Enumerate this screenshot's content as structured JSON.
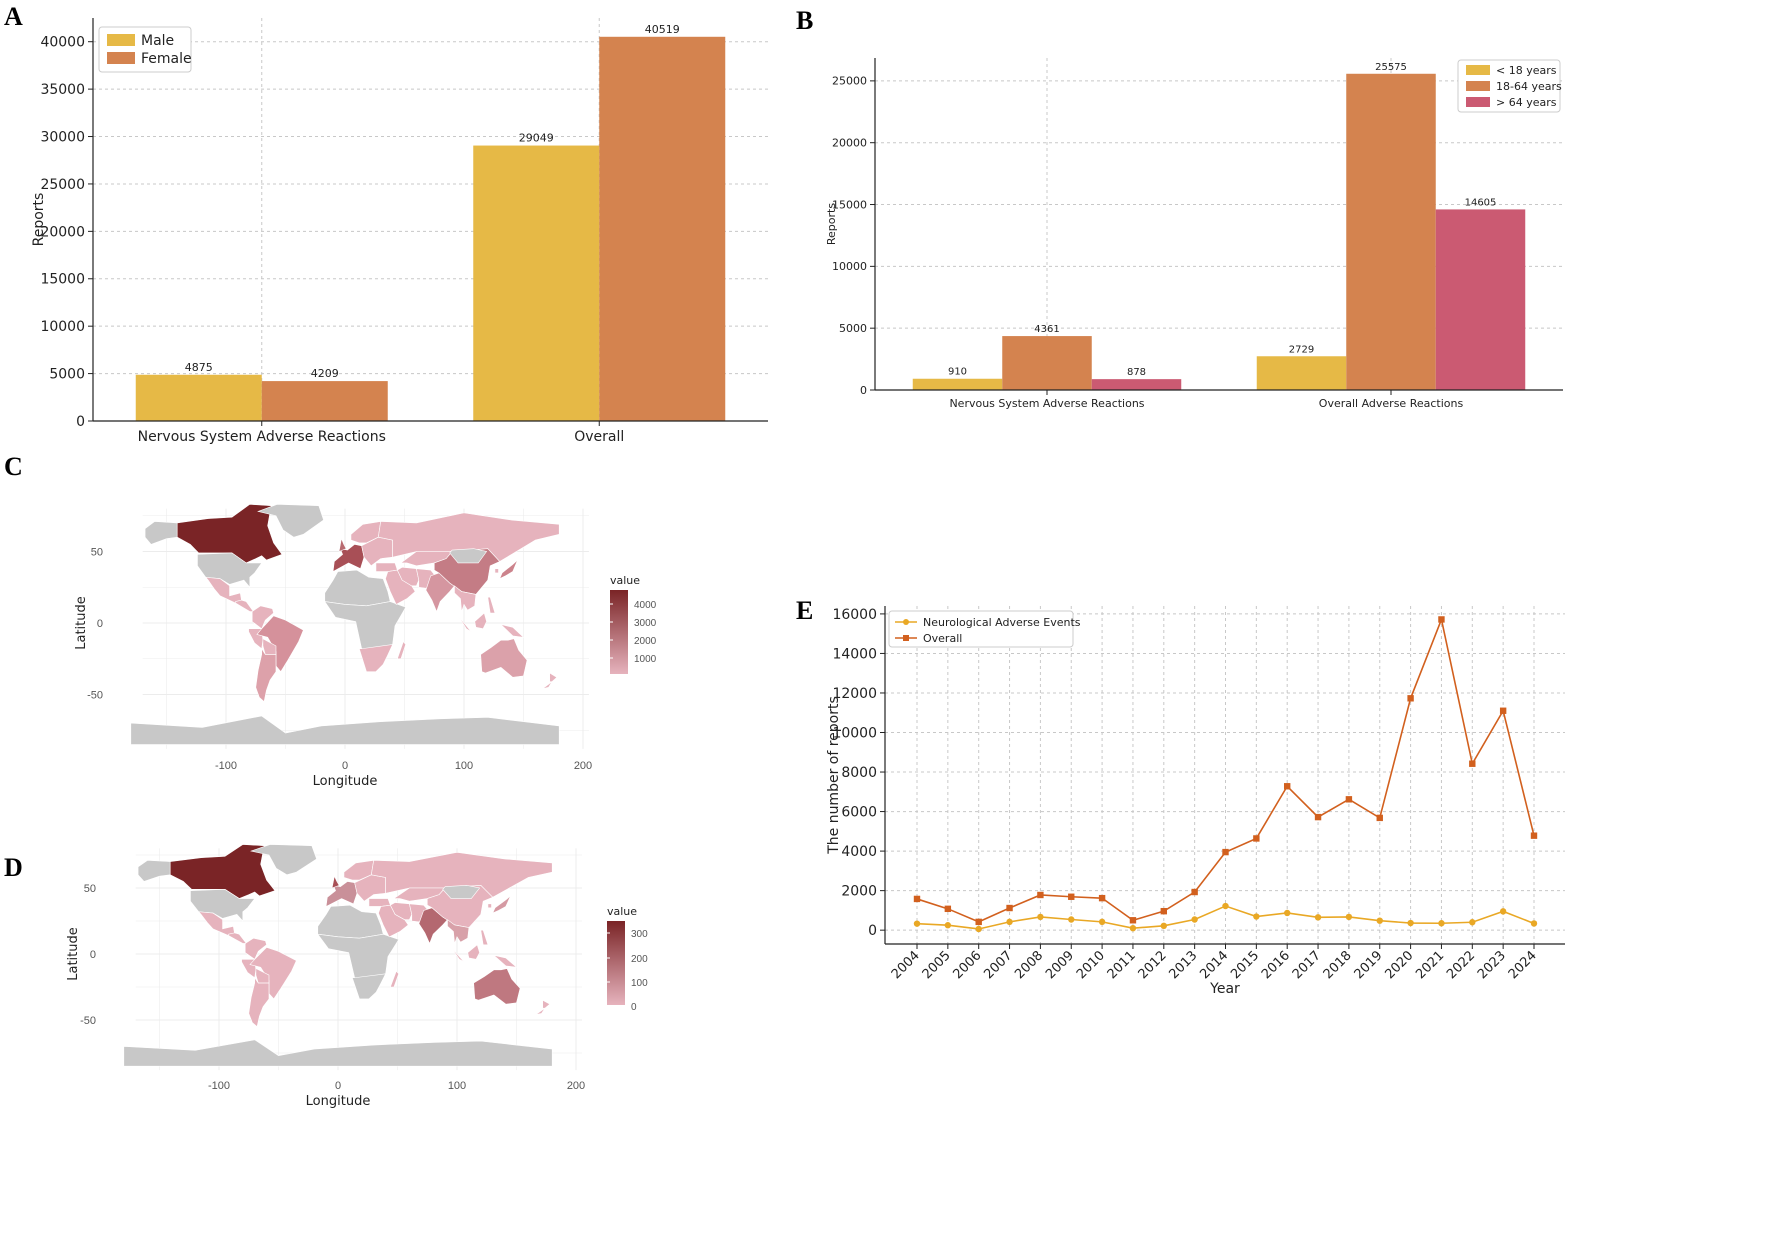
{
  "panels": {
    "a": "A",
    "b": "B",
    "c": "C",
    "d": "D",
    "e": "E"
  },
  "colors": {
    "yellow": "#E6B946",
    "orange": "#D4834F",
    "red": "#CB5A72",
    "e_yellow": "#E9A825",
    "e_orange": "#D2601E",
    "grid": "#c8c8c8",
    "land_gray": "#c8c8c8",
    "map_dark": "#7A2426",
    "map_light": "#E6B3BD"
  },
  "chart_data": [
    {
      "id": "A",
      "type": "bar",
      "categories": [
        "Nervous System Adverse Reactions",
        "Overall"
      ],
      "series": [
        {
          "name": "Male",
          "values": [
            4875,
            29049
          ]
        },
        {
          "name": "Female",
          "values": [
            4209,
            40519
          ]
        }
      ],
      "ylabel": "Reports",
      "xlabel": "",
      "ylim": [
        0,
        42500
      ],
      "yticks": [
        0,
        5000,
        10000,
        15000,
        20000,
        25000,
        30000,
        35000,
        40000
      ],
      "legend": "top-left",
      "grid": true
    },
    {
      "id": "B",
      "type": "bar",
      "categories": [
        "Nervous System Adverse Reactions",
        "Overall Adverse Reactions"
      ],
      "series": [
        {
          "name": "< 18 years",
          "values": [
            910,
            2729
          ]
        },
        {
          "name": "18-64 years",
          "values": [
            4361,
            25575
          ]
        },
        {
          "name": "> 64 years",
          "values": [
            878,
            14605
          ]
        }
      ],
      "ylabel": "Reports",
      "xlabel": "",
      "ylim": [
        0,
        26850
      ],
      "yticks": [
        0,
        5000,
        10000,
        15000,
        20000,
        25000
      ],
      "legend": "top-right",
      "grid": true
    },
    {
      "id": "E",
      "type": "line",
      "x": [
        "2004",
        "2005",
        "2006",
        "2007",
        "2008",
        "2009",
        "2010",
        "2011",
        "2012",
        "2013",
        "2014",
        "2015",
        "2016",
        "2017",
        "2018",
        "2019",
        "2020",
        "2021",
        "2022",
        "2023",
        "2024"
      ],
      "series": [
        {
          "name": "Neurological Adverse Events",
          "values": [
            330,
            250,
            60,
            420,
            670,
            540,
            420,
            100,
            220,
            540,
            1220,
            690,
            870,
            650,
            670,
            480,
            360,
            350,
            400,
            950,
            340
          ]
        },
        {
          "name": "Overall",
          "values": [
            1580,
            1080,
            420,
            1120,
            1780,
            1690,
            1620,
            500,
            960,
            1930,
            3950,
            4640,
            7280,
            5720,
            6620,
            5680,
            11730,
            15720,
            8420,
            11100,
            4780
          ]
        }
      ],
      "xlabel": "Year",
      "ylabel": "The number of reports",
      "ylim": [
        -700,
        16400
      ],
      "yticks": [
        0,
        2000,
        4000,
        6000,
        8000,
        10000,
        12000,
        14000,
        16000
      ],
      "legend": "top-left",
      "grid": true
    }
  ],
  "maps": [
    {
      "id": "C",
      "xlabel": "Longitude",
      "ylabel": "Latitude",
      "xticks": [
        "-100",
        "0",
        "100",
        "200"
      ],
      "yticks": [
        "50",
        "0",
        "-50"
      ],
      "legend_title": "value",
      "legend_ticks": [
        "4000",
        "3000",
        "2000",
        "1000"
      ]
    },
    {
      "id": "D",
      "xlabel": "Longitude",
      "ylabel": "Latitude",
      "xticks": [
        "-100",
        "0",
        "100",
        "200"
      ],
      "yticks": [
        "50",
        "0",
        "-50"
      ],
      "legend_title": "value",
      "legend_ticks": [
        "300",
        "200",
        "100",
        "0"
      ]
    }
  ]
}
